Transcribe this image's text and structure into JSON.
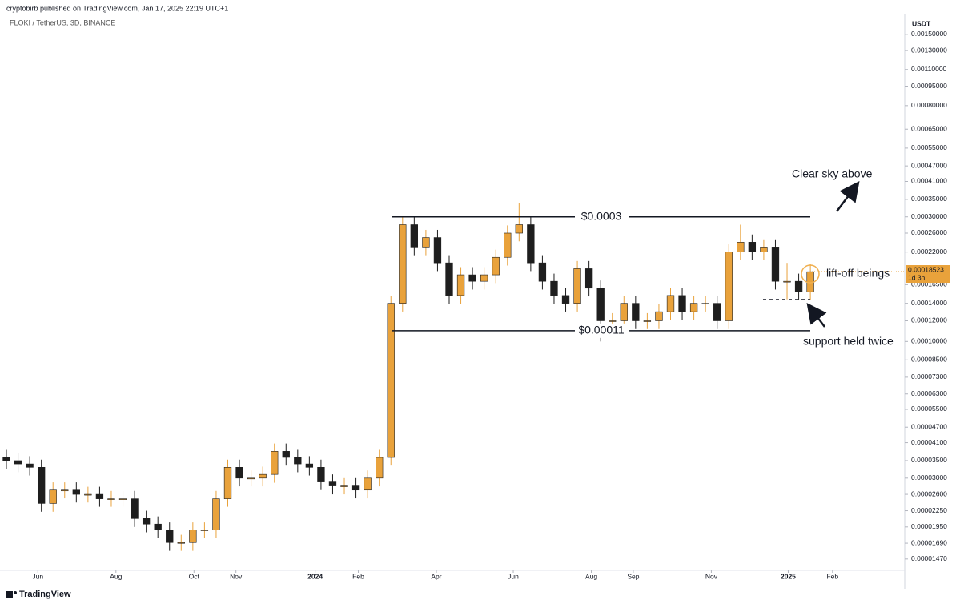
{
  "header": {
    "publisher": "cryptobirb published on TradingView.com, Jan 17, 2025 22:19 UTC+1",
    "symbol": "FLOKI / TetherUS, 3D, BINANCE"
  },
  "footer": {
    "brand": "TradingView"
  },
  "chart_data": {
    "type": "candlestick",
    "y_unit": "USDT",
    "log_scale": true,
    "up_color": "#e9a23b",
    "down_color": "#1e1e1e",
    "ylim": [
      1.33e-05,
      0.0018
    ],
    "xlim": [
      -0.55,
      77.1
    ],
    "yticks": [
      {
        "value": 0.0015,
        "label": "0.00150000"
      },
      {
        "value": 0.0013,
        "label": "0.00130000"
      },
      {
        "value": 0.0011,
        "label": "0.00110000"
      },
      {
        "value": 0.00095,
        "label": "0.00095000"
      },
      {
        "value": 0.0008,
        "label": "0.00080000"
      },
      {
        "value": 0.00065,
        "label": "0.00065000"
      },
      {
        "value": 0.00055,
        "label": "0.00055000"
      },
      {
        "value": 0.00047,
        "label": "0.00047000"
      },
      {
        "value": 0.00041,
        "label": "0.00041000"
      },
      {
        "value": 0.00035,
        "label": "0.00035000"
      },
      {
        "value": 0.0003,
        "label": "0.00030000"
      },
      {
        "value": 0.00026,
        "label": "0.00026000"
      },
      {
        "value": 0.00022,
        "label": "0.00022000"
      },
      {
        "value": 0.000165,
        "label": "0.00016500"
      },
      {
        "value": 0.00014,
        "label": "0.00014000"
      },
      {
        "value": 0.00012,
        "label": "0.00012000"
      },
      {
        "value": 0.0001,
        "label": "0.00010000"
      },
      {
        "value": 8.5e-05,
        "label": "0.00008500"
      },
      {
        "value": 7.3e-05,
        "label": "0.00007300"
      },
      {
        "value": 6.3e-05,
        "label": "0.00006300"
      },
      {
        "value": 5.5e-05,
        "label": "0.00005500"
      },
      {
        "value": 4.7e-05,
        "label": "0.00004700"
      },
      {
        "value": 4.1e-05,
        "label": "0.00004100"
      },
      {
        "value": 3.5e-05,
        "label": "0.00003500"
      },
      {
        "value": 3e-05,
        "label": "0.00003000"
      },
      {
        "value": 2.6e-05,
        "label": "0.00002600"
      },
      {
        "value": 2.25e-05,
        "label": "0.00002250"
      },
      {
        "value": 1.95e-05,
        "label": "0.00001950"
      },
      {
        "value": 1.69e-05,
        "label": "0.00001690"
      },
      {
        "value": 1.47e-05,
        "label": "0.00001470"
      }
    ],
    "xticks": [
      {
        "value": 2.7,
        "label": "Jun"
      },
      {
        "value": 9.4,
        "label": "Aug"
      },
      {
        "value": 16.1,
        "label": "Oct"
      },
      {
        "value": 19.7,
        "label": "Nov"
      },
      {
        "value": 26.5,
        "label": "2024"
      },
      {
        "value": 30.2,
        "label": "Feb"
      },
      {
        "value": 36.9,
        "label": "Apr"
      },
      {
        "value": 43.5,
        "label": "Jun"
      },
      {
        "value": 50.2,
        "label": "Aug"
      },
      {
        "value": 53.8,
        "label": "Sep"
      },
      {
        "value": 60.5,
        "label": "Nov"
      },
      {
        "value": 67.1,
        "label": "2025"
      },
      {
        "value": 70.9,
        "label": "Feb"
      }
    ],
    "open": [
      3.6e-05,
      3.5e-05,
      3.4e-05,
      3.3e-05,
      2.4e-05,
      2.7e-05,
      2.7e-05,
      2.6e-05,
      2.6e-05,
      2.5e-05,
      2.5e-05,
      2.5e-05,
      2.1e-05,
      2e-05,
      1.9e-05,
      1.7e-05,
      1.7e-05,
      1.9e-05,
      1.9e-05,
      2.5e-05,
      3.3e-05,
      3e-05,
      3e-05,
      3.1e-05,
      3.8e-05,
      3.6e-05,
      3.4e-05,
      3.3e-05,
      2.9e-05,
      2.8e-05,
      2.8e-05,
      2.7e-05,
      3e-05,
      3.6e-05,
      0.00014,
      0.00028,
      0.00023,
      0.00025,
      0.0002,
      0.00015,
      0.00018,
      0.00017,
      0.00018,
      0.00021,
      0.00026,
      0.00028,
      0.0002,
      0.00017,
      0.00015,
      0.00014,
      0.00019,
      0.00016,
      0.00012,
      0.00012,
      0.00014,
      0.00012,
      0.00012,
      0.00013,
      0.00015,
      0.00013,
      0.00014,
      0.00014,
      0.00012,
      0.00022,
      0.00024,
      0.00022,
      0.00023,
      0.00017,
      0.00017,
      0.000155
    ],
    "high": [
      3.85e-05,
      3.75e-05,
      3.64e-05,
      3.53e-05,
      2.89e-05,
      2.89e-05,
      2.89e-05,
      2.78e-05,
      2.78e-05,
      2.68e-05,
      2.68e-05,
      2.68e-05,
      2.25e-05,
      2.14e-05,
      2.03e-05,
      1.82e-05,
      2.03e-05,
      2.03e-05,
      2.68e-05,
      3.53e-05,
      3.53e-05,
      3.21e-05,
      3.32e-05,
      4.07e-05,
      4.07e-05,
      3.85e-05,
      3.64e-05,
      3.53e-05,
      3.1e-05,
      3e-05,
      3e-05,
      3.21e-05,
      3.85e-05,
      0.0001498,
      0.0002996,
      0.0002996,
      0.0002675,
      0.0002675,
      0.000214,
      0.0001926,
      0.0001926,
      0.0001926,
      0.0002247,
      0.0002782,
      0.00034,
      0.0002996,
      0.000214,
      0.0001819,
      0.0001605,
      0.0002033,
      0.0002033,
      0.0001712,
      0.0001284,
      0.0001498,
      0.0001498,
      0.0001284,
      0.0001391,
      0.0001605,
      0.0001605,
      0.0001498,
      0.0001498,
      0.0001498,
      0.0002354,
      0.00028,
      0.0002568,
      0.0002461,
      0.0002461,
      0.0002,
      0.0001819,
      0.0001979
    ],
    "low": [
      3.26e-05,
      3.16e-05,
      3.07e-05,
      2.23e-05,
      2.23e-05,
      2.51e-05,
      2.42e-05,
      2.42e-05,
      2.33e-05,
      2.33e-05,
      2.33e-05,
      1.95e-05,
      1.86e-05,
      1.77e-05,
      1.58e-05,
      1.58e-05,
      1.58e-05,
      1.77e-05,
      1.77e-05,
      2.33e-05,
      2.79e-05,
      2.79e-05,
      2.79e-05,
      2.88e-05,
      3.35e-05,
      3.16e-05,
      3.07e-05,
      2.7e-05,
      2.6e-05,
      2.6e-05,
      2.51e-05,
      2.51e-05,
      2.79e-05,
      3.35e-05,
      0.0001302,
      0.0002139,
      0.0002139,
      0.000186,
      0.0001395,
      0.0001395,
      0.0001581,
      0.0001581,
      0.0001674,
      0.0001953,
      0.0002418,
      0.000186,
      0.0001581,
      0.0001395,
      0.0001302,
      0.0001302,
      0.0001488,
      0.0001,
      0.0001116,
      0.0001116,
      0.0001116,
      0.0001116,
      0.0001116,
      0.0001209,
      0.0001209,
      0.0001209,
      0.0001302,
      0.0001116,
      0.0001116,
      0.0002046,
      0.0002046,
      0.0002046,
      0.0001581,
      0.000145,
      0.0001442,
      0.0001442
    ],
    "close": [
      3.5e-05,
      3.4e-05,
      3.3e-05,
      2.4e-05,
      2.7e-05,
      2.7e-05,
      2.6e-05,
      2.6e-05,
      2.5e-05,
      2.5e-05,
      2.5e-05,
      2.1e-05,
      2e-05,
      1.9e-05,
      1.7e-05,
      1.7e-05,
      1.9e-05,
      1.9e-05,
      2.5e-05,
      3.3e-05,
      3e-05,
      3e-05,
      3.1e-05,
      3.8e-05,
      3.6e-05,
      3.4e-05,
      3.3e-05,
      2.9e-05,
      2.8e-05,
      2.8e-05,
      2.7e-05,
      3e-05,
      3.6e-05,
      0.00014,
      0.00028,
      0.00023,
      0.00025,
      0.0002,
      0.00015,
      0.00018,
      0.00017,
      0.00018,
      0.00021,
      0.00026,
      0.00028,
      0.0002,
      0.00017,
      0.00015,
      0.00014,
      0.00019,
      0.00016,
      0.00012,
      0.00012,
      0.00014,
      0.00012,
      0.00012,
      0.00013,
      0.00015,
      0.00013,
      0.00014,
      0.00014,
      0.00012,
      0.00022,
      0.00024,
      0.00022,
      0.00023,
      0.00017,
      0.00017,
      0.000155,
      0.000185
    ],
    "current_price": {
      "value": 0.00018523,
      "label": "0.00018523",
      "countdown": "1d 3h"
    },
    "levels": [
      {
        "value": 0.0003,
        "label": "$0.0003",
        "style": "solid"
      },
      {
        "value": 0.00011,
        "label": "$0.00011",
        "style": "solid"
      },
      {
        "value": 0.000145,
        "style": "dashed"
      }
    ],
    "annotations": [
      "Clear sky above",
      "lift-off beings",
      "support held twice"
    ]
  }
}
